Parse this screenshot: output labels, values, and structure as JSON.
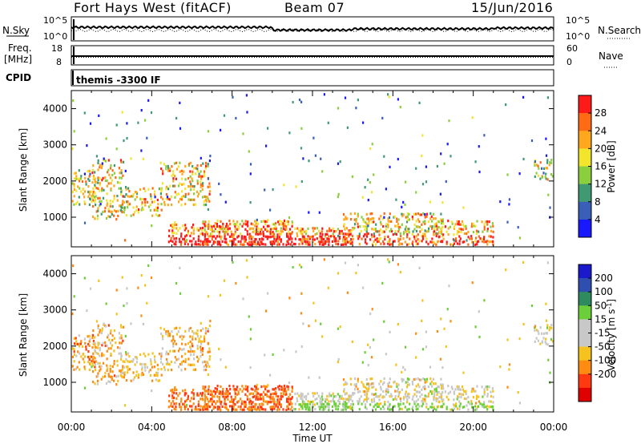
{
  "header": {
    "station": "Fort Hays West (fitACF)",
    "beam": "Beam 07",
    "date": "15/Jun/2016"
  },
  "strips": {
    "sky_label": "N.Sky",
    "search_label": "N.Search",
    "freq_label_1": "Freq.",
    "freq_label_2": "[MHz]",
    "nave_label": "Nave",
    "cpid_label": "CPID",
    "cpid_value": "themis -3300 IF",
    "noise_left_ticks": [
      "10^5",
      "10^0"
    ],
    "noise_right_ticks": [
      "10^5",
      "10^0"
    ],
    "freq_left_ticks": [
      "18",
      "8"
    ],
    "freq_right_ticks": [
      "60",
      "0"
    ]
  },
  "chart_data": [
    {
      "type": "heatmap",
      "name": "power",
      "ylabel": "Slant Range [km]",
      "xlabel": "Time UT",
      "x_ticks": [
        "00:00",
        "04:00",
        "08:00",
        "12:00",
        "16:00",
        "20:00",
        "00:00"
      ],
      "y_ticks": [
        "1000",
        "2000",
        "3000",
        "4000"
      ],
      "xlim": [
        0,
        24
      ],
      "ylim": [
        180,
        4500
      ],
      "colorbar_label": "Power [dB]",
      "colorbar_ticks": [
        "4",
        "8",
        "12",
        "16",
        "20",
        "24",
        "28"
      ],
      "colorbar_colors": [
        "#1919ff",
        "#3a5fb8",
        "#3f9a73",
        "#8ccf3e",
        "#f2e52c",
        "#ffa81e",
        "#ff6a14",
        "#ff1a1a"
      ]
    },
    {
      "type": "heatmap",
      "name": "velocity",
      "ylabel": "Slant Range [km]",
      "xlabel": "Time UT",
      "x_ticks": [
        "00:00",
        "04:00",
        "08:00",
        "12:00",
        "16:00",
        "20:00",
        "00:00"
      ],
      "y_ticks": [
        "1000",
        "2000",
        "3000",
        "4000"
      ],
      "xlim": [
        0,
        24
      ],
      "ylim": [
        180,
        4500
      ],
      "colorbar_label": "Velocity [m s^-1]",
      "colorbar_ticks": [
        "200",
        "100",
        "50",
        "15",
        "-15",
        "-50",
        "-100",
        "-200"
      ],
      "colorbar_colors": [
        "#1a1acc",
        "#2f4fb0",
        "#2e8a5f",
        "#6ccf3a",
        "#c8c8c8",
        "#c8c8c8",
        "#f5c21e",
        "#ff8c10",
        "#ff3a10",
        "#e00000"
      ]
    }
  ]
}
